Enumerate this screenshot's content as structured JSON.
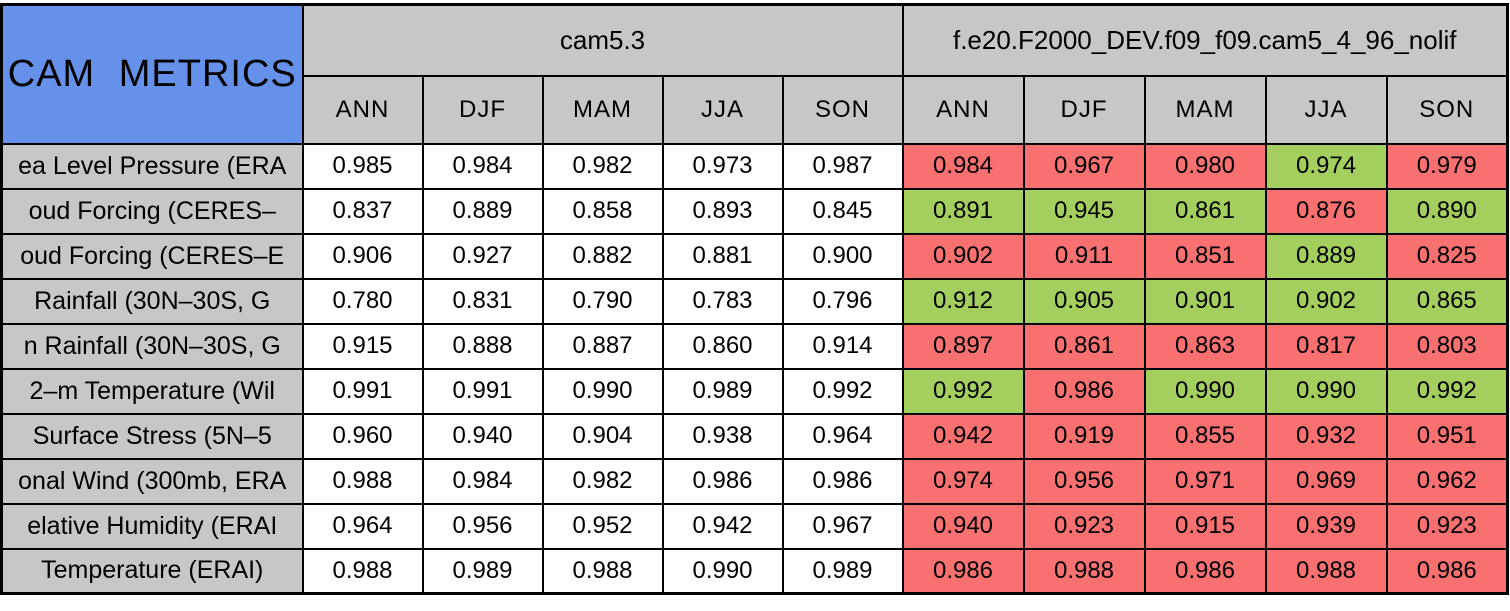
{
  "title": "CAM METRICS",
  "colors": {
    "header_blue": "#6691ea",
    "header_gray": "#c7c7c7",
    "better_green": "#a4cf5e",
    "worse_red": "#f87070",
    "cell_white": "#ffffff",
    "border_black": "#000000"
  },
  "chart_data": {
    "type": "table",
    "title": "CAM METRICS",
    "groups": [
      {
        "name": "cam5.3",
        "seasons": [
          "ANN",
          "DJF",
          "MAM",
          "JJA",
          "SON"
        ]
      },
      {
        "name": "f.e20.F2000_DEV.f09_f09.cam5_4_96_nolif",
        "seasons": [
          "ANN",
          "DJF",
          "MAM",
          "JJA",
          "SON"
        ]
      }
    ],
    "rows": [
      {
        "label": "ea Level Pressure (ERA",
        "cam5_3": [
          "0.985",
          "0.984",
          "0.982",
          "0.973",
          "0.987"
        ],
        "test": [
          "0.984",
          "0.967",
          "0.980",
          "0.974",
          "0.979"
        ],
        "test_colors": [
          "red",
          "red",
          "red",
          "green",
          "red"
        ]
      },
      {
        "label": "oud Forcing (CERES–",
        "cam5_3": [
          "0.837",
          "0.889",
          "0.858",
          "0.893",
          "0.845"
        ],
        "test": [
          "0.891",
          "0.945",
          "0.861",
          "0.876",
          "0.890"
        ],
        "test_colors": [
          "green",
          "green",
          "green",
          "red",
          "green"
        ]
      },
      {
        "label": "oud Forcing (CERES–E",
        "cam5_3": [
          "0.906",
          "0.927",
          "0.882",
          "0.881",
          "0.900"
        ],
        "test": [
          "0.902",
          "0.911",
          "0.851",
          "0.889",
          "0.825"
        ],
        "test_colors": [
          "red",
          "red",
          "red",
          "green",
          "red"
        ]
      },
      {
        "label": "Rainfall (30N–30S, G",
        "cam5_3": [
          "0.780",
          "0.831",
          "0.790",
          "0.783",
          "0.796"
        ],
        "test": [
          "0.912",
          "0.905",
          "0.901",
          "0.902",
          "0.865"
        ],
        "test_colors": [
          "green",
          "green",
          "green",
          "green",
          "green"
        ]
      },
      {
        "label": "n Rainfall (30N–30S, G",
        "cam5_3": [
          "0.915",
          "0.888",
          "0.887",
          "0.860",
          "0.914"
        ],
        "test": [
          "0.897",
          "0.861",
          "0.863",
          "0.817",
          "0.803"
        ],
        "test_colors": [
          "red",
          "red",
          "red",
          "red",
          "red"
        ]
      },
      {
        "label": "2–m Temperature (Wil",
        "cam5_3": [
          "0.991",
          "0.991",
          "0.990",
          "0.989",
          "0.992"
        ],
        "test": [
          "0.992",
          "0.986",
          "0.990",
          "0.990",
          "0.992"
        ],
        "test_colors": [
          "green",
          "red",
          "green",
          "green",
          "green"
        ]
      },
      {
        "label": "Surface Stress (5N–5",
        "cam5_3": [
          "0.960",
          "0.940",
          "0.904",
          "0.938",
          "0.964"
        ],
        "test": [
          "0.942",
          "0.919",
          "0.855",
          "0.932",
          "0.951"
        ],
        "test_colors": [
          "red",
          "red",
          "red",
          "red",
          "red"
        ]
      },
      {
        "label": "onal Wind (300mb, ERA",
        "cam5_3": [
          "0.988",
          "0.984",
          "0.982",
          "0.986",
          "0.986"
        ],
        "test": [
          "0.974",
          "0.956",
          "0.971",
          "0.969",
          "0.962"
        ],
        "test_colors": [
          "red",
          "red",
          "red",
          "red",
          "red"
        ]
      },
      {
        "label": "elative Humidity (ERAI",
        "cam5_3": [
          "0.964",
          "0.956",
          "0.952",
          "0.942",
          "0.967"
        ],
        "test": [
          "0.940",
          "0.923",
          "0.915",
          "0.939",
          "0.923"
        ],
        "test_colors": [
          "red",
          "red",
          "red",
          "red",
          "red"
        ]
      },
      {
        "label": "Temperature (ERAI)",
        "cam5_3": [
          "0.988",
          "0.989",
          "0.988",
          "0.990",
          "0.989"
        ],
        "test": [
          "0.986",
          "0.988",
          "0.986",
          "0.988",
          "0.986"
        ],
        "test_colors": [
          "red",
          "red",
          "red",
          "red",
          "red"
        ]
      }
    ]
  }
}
